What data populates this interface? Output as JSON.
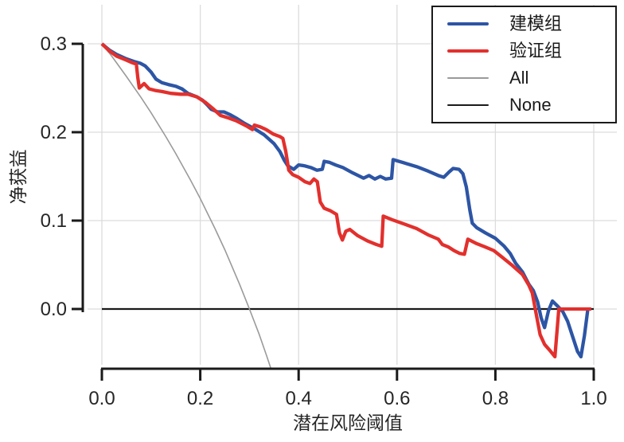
{
  "chart_data": {
    "type": "line",
    "title": "",
    "xlabel": "潜在风险阈值",
    "ylabel": "净获益",
    "xlim": [
      0.0,
      1.0
    ],
    "ylim": [
      -0.068,
      0.32
    ],
    "grid": true,
    "x_ticks": {
      "values": [
        0.0,
        0.2,
        0.4,
        0.6,
        0.8,
        1.0
      ],
      "labels": [
        "0.0",
        "0.2",
        "0.4",
        "0.6",
        "0.8",
        "1.0"
      ]
    },
    "y_ticks": {
      "values": [
        0.3,
        0.2,
        0.1,
        0.0
      ],
      "labels": [
        "0.3",
        "0.2",
        "0.1",
        "0.0"
      ]
    },
    "legend": {
      "position": "upper right",
      "items": [
        {
          "id": "model-group",
          "label": "建模组",
          "color": "#2d55a5",
          "thickness": 4
        },
        {
          "id": "validation-group",
          "label": "验证组",
          "color": "#e2302d",
          "thickness": 4
        },
        {
          "id": "all",
          "label": "All",
          "color": "#9a9a9a",
          "thickness": 2
        },
        {
          "id": "none",
          "label": "None",
          "color": "#1a1a1a",
          "thickness": 2
        }
      ]
    },
    "series": [
      {
        "id": "none",
        "name": "None",
        "color": "#1a1a1a",
        "width": 2.2,
        "points": [
          [
            0.0,
            0.0
          ],
          [
            1.0,
            0.0
          ]
        ]
      },
      {
        "id": "all",
        "name": "All",
        "color": "#9a9a9a",
        "width": 1.6,
        "points": [
          [
            0.0,
            0.3
          ],
          [
            0.02,
            0.286
          ],
          [
            0.05,
            0.263
          ],
          [
            0.08,
            0.239
          ],
          [
            0.1,
            0.222
          ],
          [
            0.13,
            0.195
          ],
          [
            0.15,
            0.176
          ],
          [
            0.18,
            0.146
          ],
          [
            0.2,
            0.125
          ],
          [
            0.23,
            0.091
          ],
          [
            0.25,
            0.067
          ],
          [
            0.28,
            0.028
          ],
          [
            0.3,
            0.0
          ],
          [
            0.32,
            -0.029
          ],
          [
            0.335,
            -0.053
          ],
          [
            0.344,
            -0.068
          ]
        ]
      },
      {
        "id": "model-group",
        "name": "建模组",
        "color": "#2d55a5",
        "width": 4.3,
        "points": [
          [
            0.0,
            0.3
          ],
          [
            0.015,
            0.293
          ],
          [
            0.03,
            0.288
          ],
          [
            0.05,
            0.283
          ],
          [
            0.065,
            0.28
          ],
          [
            0.078,
            0.278
          ],
          [
            0.088,
            0.275
          ],
          [
            0.1,
            0.268
          ],
          [
            0.11,
            0.26
          ],
          [
            0.122,
            0.256
          ],
          [
            0.135,
            0.254
          ],
          [
            0.15,
            0.252
          ],
          [
            0.163,
            0.249
          ],
          [
            0.175,
            0.244
          ],
          [
            0.193,
            0.24
          ],
          [
            0.205,
            0.236
          ],
          [
            0.214,
            0.231
          ],
          [
            0.222,
            0.226
          ],
          [
            0.235,
            0.223
          ],
          [
            0.248,
            0.223
          ],
          [
            0.26,
            0.22
          ],
          [
            0.273,
            0.216
          ],
          [
            0.29,
            0.21
          ],
          [
            0.31,
            0.204
          ],
          [
            0.33,
            0.197
          ],
          [
            0.35,
            0.187
          ],
          [
            0.362,
            0.178
          ],
          [
            0.371,
            0.168
          ],
          [
            0.378,
            0.162
          ],
          [
            0.39,
            0.158
          ],
          [
            0.4,
            0.163
          ],
          [
            0.412,
            0.162
          ],
          [
            0.425,
            0.16
          ],
          [
            0.437,
            0.157
          ],
          [
            0.448,
            0.158
          ],
          [
            0.452,
            0.167
          ],
          [
            0.462,
            0.166
          ],
          [
            0.475,
            0.163
          ],
          [
            0.49,
            0.16
          ],
          [
            0.51,
            0.154
          ],
          [
            0.532,
            0.148
          ],
          [
            0.543,
            0.151
          ],
          [
            0.555,
            0.147
          ],
          [
            0.566,
            0.15
          ],
          [
            0.577,
            0.147
          ],
          [
            0.589,
            0.148
          ],
          [
            0.592,
            0.169
          ],
          [
            0.61,
            0.166
          ],
          [
            0.64,
            0.161
          ],
          [
            0.663,
            0.156
          ],
          [
            0.684,
            0.151
          ],
          [
            0.695,
            0.149
          ],
          [
            0.706,
            0.155
          ],
          [
            0.714,
            0.159
          ],
          [
            0.726,
            0.158
          ],
          [
            0.734,
            0.153
          ],
          [
            0.741,
            0.138
          ],
          [
            0.748,
            0.112
          ],
          [
            0.753,
            0.097
          ],
          [
            0.762,
            0.092
          ],
          [
            0.78,
            0.086
          ],
          [
            0.8,
            0.08
          ],
          [
            0.818,
            0.071
          ],
          [
            0.83,
            0.063
          ],
          [
            0.841,
            0.052
          ],
          [
            0.855,
            0.042
          ],
          [
            0.868,
            0.028
          ],
          [
            0.877,
            0.021
          ],
          [
            0.886,
            0.008
          ],
          [
            0.893,
            -0.01
          ],
          [
            0.9,
            -0.021
          ],
          [
            0.908,
            -0.002
          ],
          [
            0.916,
            0.009
          ],
          [
            0.927,
            0.003
          ],
          [
            0.937,
            -0.003
          ],
          [
            0.947,
            -0.014
          ],
          [
            0.957,
            -0.031
          ],
          [
            0.967,
            -0.048
          ],
          [
            0.974,
            -0.054
          ],
          [
            0.981,
            -0.03
          ],
          [
            0.988,
            0.0
          ]
        ]
      },
      {
        "id": "validation-group",
        "name": "验证组",
        "color": "#e2302d",
        "width": 4.3,
        "points": [
          [
            0.0,
            0.3
          ],
          [
            0.015,
            0.292
          ],
          [
            0.03,
            0.286
          ],
          [
            0.048,
            0.282
          ],
          [
            0.06,
            0.279
          ],
          [
            0.07,
            0.277
          ],
          [
            0.073,
            0.262
          ],
          [
            0.076,
            0.25
          ],
          [
            0.086,
            0.255
          ],
          [
            0.096,
            0.249
          ],
          [
            0.11,
            0.247
          ],
          [
            0.122,
            0.246
          ],
          [
            0.14,
            0.244
          ],
          [
            0.16,
            0.243
          ],
          [
            0.175,
            0.243
          ],
          [
            0.193,
            0.24
          ],
          [
            0.21,
            0.234
          ],
          [
            0.225,
            0.227
          ],
          [
            0.241,
            0.219
          ],
          [
            0.258,
            0.216
          ],
          [
            0.273,
            0.213
          ],
          [
            0.294,
            0.207
          ],
          [
            0.306,
            0.203
          ],
          [
            0.31,
            0.208
          ],
          [
            0.322,
            0.206
          ],
          [
            0.334,
            0.203
          ],
          [
            0.348,
            0.198
          ],
          [
            0.362,
            0.195
          ],
          [
            0.368,
            0.193
          ],
          [
            0.374,
            0.178
          ],
          [
            0.38,
            0.157
          ],
          [
            0.388,
            0.152
          ],
          [
            0.4,
            0.149
          ],
          [
            0.413,
            0.144
          ],
          [
            0.423,
            0.142
          ],
          [
            0.431,
            0.147
          ],
          [
            0.438,
            0.144
          ],
          [
            0.444,
            0.121
          ],
          [
            0.452,
            0.114
          ],
          [
            0.465,
            0.111
          ],
          [
            0.477,
            0.107
          ],
          [
            0.483,
            0.086
          ],
          [
            0.489,
            0.078
          ],
          [
            0.496,
            0.088
          ],
          [
            0.504,
            0.09
          ],
          [
            0.52,
            0.083
          ],
          [
            0.54,
            0.077
          ],
          [
            0.558,
            0.073
          ],
          [
            0.569,
            0.071
          ],
          [
            0.572,
            0.105
          ],
          [
            0.59,
            0.101
          ],
          [
            0.615,
            0.096
          ],
          [
            0.64,
            0.091
          ],
          [
            0.663,
            0.084
          ],
          [
            0.684,
            0.079
          ],
          [
            0.692,
            0.073
          ],
          [
            0.705,
            0.07
          ],
          [
            0.716,
            0.066
          ],
          [
            0.727,
            0.063
          ],
          [
            0.737,
            0.062
          ],
          [
            0.744,
            0.079
          ],
          [
            0.762,
            0.074
          ],
          [
            0.78,
            0.07
          ],
          [
            0.797,
            0.066
          ],
          [
            0.815,
            0.058
          ],
          [
            0.835,
            0.049
          ],
          [
            0.855,
            0.039
          ],
          [
            0.868,
            0.027
          ],
          [
            0.875,
            0.018
          ],
          [
            0.881,
            0.0
          ],
          [
            0.891,
            -0.029
          ],
          [
            0.9,
            -0.04
          ],
          [
            0.911,
            -0.047
          ],
          [
            0.921,
            -0.054
          ],
          [
            0.926,
            -0.02
          ],
          [
            0.929,
            0.0
          ],
          [
            0.995,
            0.0
          ]
        ]
      }
    ],
    "colors": {
      "grid": "#dcdcdc",
      "spine": "#1a1a1a",
      "tick_label": "#262626",
      "background": "#ffffff"
    }
  }
}
